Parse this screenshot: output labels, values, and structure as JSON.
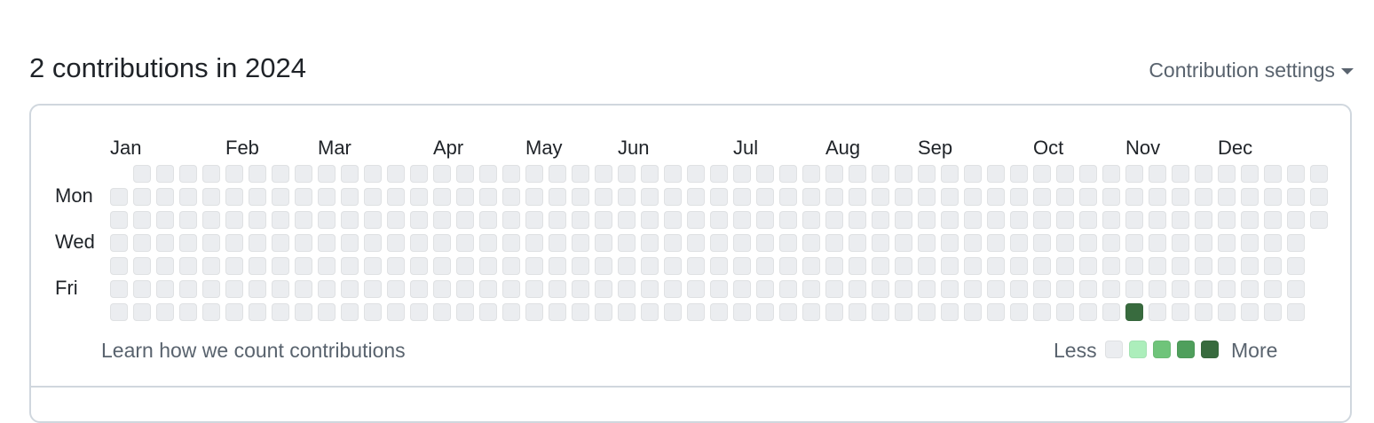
{
  "header": {
    "title": "2 contributions in 2024",
    "settings_label": "Contribution settings",
    "settings_icon": "caret-down-icon"
  },
  "graph": {
    "months": [
      "Jan",
      "Feb",
      "Mar",
      "Apr",
      "May",
      "Jun",
      "Jul",
      "Aug",
      "Sep",
      "Oct",
      "Nov",
      "Dec"
    ],
    "day_labels": [
      "Mon",
      "Wed",
      "Fri"
    ],
    "weeks": 53,
    "first_week_start_day": 1,
    "last_week_days": 3,
    "active_days": [
      {
        "week": 44,
        "day": 6,
        "level": 4
      }
    ],
    "level_colors": [
      "#ebedf0",
      "#aceebb",
      "#6fc47a",
      "#4f9f5c",
      "#386b3e"
    ]
  },
  "footer": {
    "learn_link": "Learn how we count contributions",
    "legend_less": "Less",
    "legend_more": "More"
  }
}
